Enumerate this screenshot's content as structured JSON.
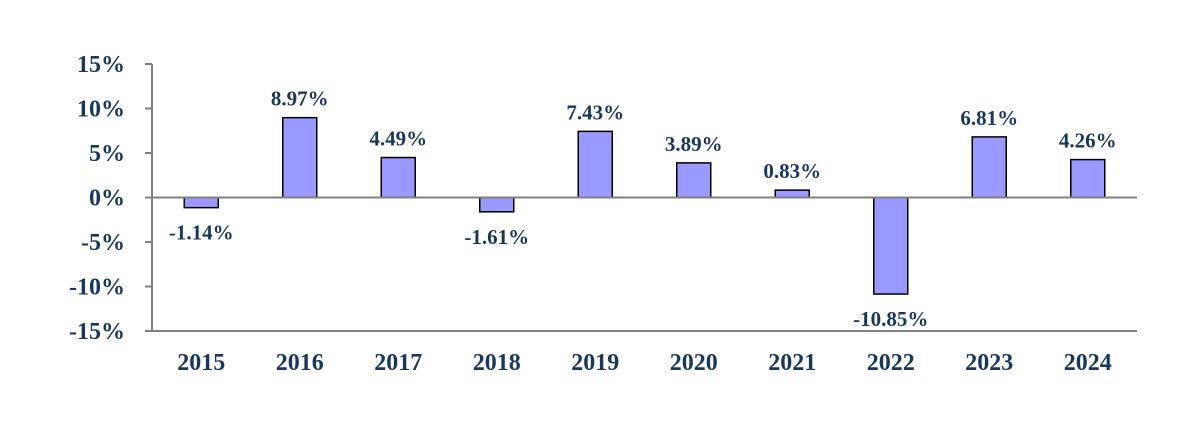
{
  "chart_data": {
    "type": "bar",
    "categories": [
      "2015",
      "2016",
      "2017",
      "2018",
      "2019",
      "2020",
      "2021",
      "2022",
      "2023",
      "2024"
    ],
    "values": [
      -1.14,
      8.97,
      4.49,
      -1.61,
      7.43,
      3.89,
      0.83,
      -10.85,
      6.81,
      4.26
    ],
    "data_labels": [
      "-1.14%",
      "8.97%",
      "4.49%",
      "-1.61%",
      "7.43%",
      "3.89%",
      "0.83%",
      "-10.85%",
      "6.81%",
      "4.26%"
    ],
    "ylim": [
      -15,
      15
    ],
    "yticks": [
      15,
      10,
      5,
      0,
      -5,
      -10,
      -15
    ],
    "ytick_labels": [
      "15%",
      "10%",
      "5%",
      "0%",
      "-5%",
      "-10%",
      "-15%"
    ],
    "grid": false,
    "legend": "none",
    "colors": {
      "bar_fill": "#9999ff",
      "bar_stroke": "#000000",
      "text": "#17375e",
      "axis": "#808080"
    }
  }
}
